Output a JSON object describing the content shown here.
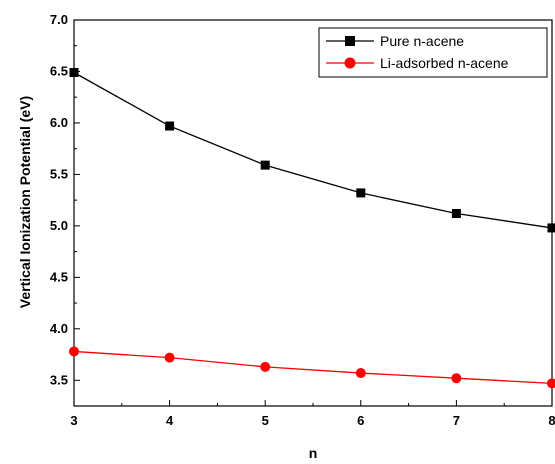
{
  "chart_data": {
    "type": "line",
    "xlabel": "n",
    "ylabel": "Vertical Ionization Potential (eV)",
    "x": [
      3,
      4,
      5,
      6,
      7,
      8
    ],
    "xlim": [
      3,
      8
    ],
    "ylim": [
      3.25,
      7.0
    ],
    "xticks": [
      3,
      4,
      5,
      6,
      7,
      8
    ],
    "yticks": [
      3.5,
      4.0,
      4.5,
      5.0,
      5.5,
      6.0,
      6.5,
      7.0
    ],
    "grid": false,
    "legend_position": "top-right",
    "series": [
      {
        "name": "Pure n-acene",
        "values": [
          6.49,
          5.97,
          5.59,
          5.32,
          5.12,
          4.98
        ],
        "color": "#000000",
        "marker": "square"
      },
      {
        "name": "Li-adsorbed n-acene",
        "values": [
          3.78,
          3.72,
          3.63,
          3.57,
          3.52,
          3.47
        ],
        "color": "#ff0000",
        "marker": "circle"
      }
    ]
  }
}
